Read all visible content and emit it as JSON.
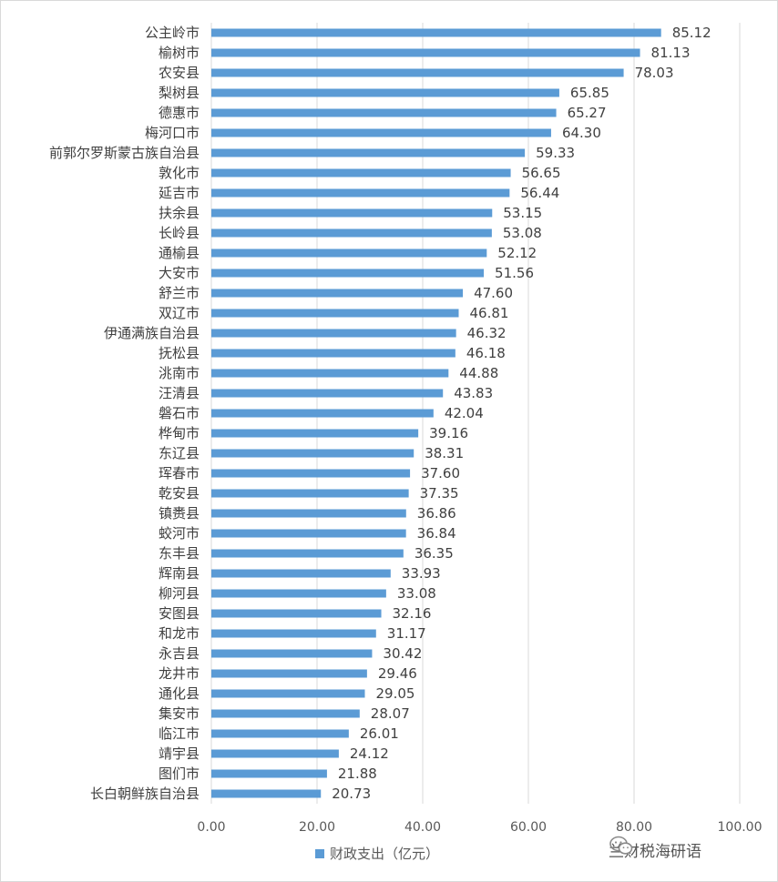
{
  "chart_data": {
    "type": "bar",
    "orientation": "horizontal",
    "categories": [
      "公主岭市",
      "榆树市",
      "农安县",
      "梨树县",
      "德惠市",
      "梅河口市",
      "前郭尔罗斯蒙古族自治县",
      "敦化市",
      "延吉市",
      "扶余县",
      "长岭县",
      "通榆县",
      "大安市",
      "舒兰市",
      "双辽市",
      "伊通满族自治县",
      "抚松县",
      "洮南市",
      "汪清县",
      "磐石市",
      "桦甸市",
      "东辽县",
      "珲春市",
      "乾安县",
      "镇赉县",
      "蛟河市",
      "东丰县",
      "辉南县",
      "柳河县",
      "安图县",
      "和龙市",
      "永吉县",
      "龙井市",
      "通化县",
      "集安市",
      "临江市",
      "靖宇县",
      "图们市",
      "长白朝鲜族自治县"
    ],
    "series": [
      {
        "name": "财政支出（亿元）",
        "color": "#5b9bd5",
        "values": [
          85.12,
          81.13,
          78.03,
          65.85,
          65.27,
          64.3,
          59.33,
          56.65,
          56.44,
          53.15,
          53.08,
          52.12,
          51.56,
          47.6,
          46.81,
          46.32,
          46.18,
          44.88,
          43.83,
          42.04,
          39.16,
          38.31,
          37.6,
          37.35,
          36.86,
          36.84,
          36.35,
          33.93,
          33.08,
          32.16,
          31.17,
          30.42,
          29.46,
          29.05,
          28.07,
          26.01,
          24.12,
          21.88,
          20.73
        ],
        "value_labels": [
          "85.12",
          "81.13",
          "78.03",
          "65.85",
          "65.27",
          "64.30",
          "59.33",
          "56.65",
          "56.44",
          "53.15",
          "53.08",
          "52.12",
          "51.56",
          "47.60",
          "46.81",
          "46.32",
          "46.18",
          "44.88",
          "43.83",
          "42.04",
          "39.16",
          "38.31",
          "37.60",
          "37.35",
          "36.86",
          "36.84",
          "36.35",
          "33.93",
          "33.08",
          "32.16",
          "31.17",
          "30.42",
          "29.46",
          "29.05",
          "28.07",
          "26.01",
          "24.12",
          "21.88",
          "20.73"
        ]
      }
    ],
    "x_ticks": [
      "0.00",
      "20.00",
      "40.00",
      "60.00",
      "80.00",
      "100.00"
    ],
    "xlim": [
      0,
      100
    ],
    "grid": "vertical",
    "legend_position": "bottom"
  },
  "watermark": {
    "text": "兰财税海研语",
    "icon": "wechat-icon"
  }
}
